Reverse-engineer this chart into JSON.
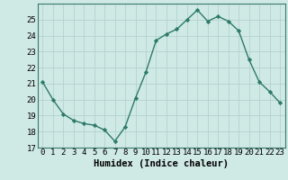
{
  "x": [
    0,
    1,
    2,
    3,
    4,
    5,
    6,
    7,
    8,
    9,
    10,
    11,
    12,
    13,
    14,
    15,
    16,
    17,
    18,
    19,
    20,
    21,
    22,
    23
  ],
  "y": [
    21.1,
    20.0,
    19.1,
    18.7,
    18.5,
    18.4,
    18.1,
    17.4,
    18.3,
    20.1,
    21.7,
    23.7,
    24.1,
    24.4,
    25.0,
    25.6,
    24.9,
    25.2,
    24.9,
    24.3,
    22.5,
    21.1,
    20.5,
    19.8
  ],
  "line_color": "#2d7a6a",
  "marker": "D",
  "marker_size": 2.2,
  "bg_color": "#cfe9e5",
  "grid_color": "#b0ceca",
  "xlabel": "Humidex (Indice chaleur)",
  "xlim": [
    -0.5,
    23.5
  ],
  "ylim": [
    17,
    26
  ],
  "yticks": [
    17,
    18,
    19,
    20,
    21,
    22,
    23,
    24,
    25
  ],
  "xticks": [
    0,
    1,
    2,
    3,
    4,
    5,
    6,
    7,
    8,
    9,
    10,
    11,
    12,
    13,
    14,
    15,
    16,
    17,
    18,
    19,
    20,
    21,
    22,
    23
  ],
  "xlabel_fontsize": 7.5,
  "tick_fontsize": 6.5,
  "linewidth": 1.0,
  "spine_color": "#3a7a6a"
}
